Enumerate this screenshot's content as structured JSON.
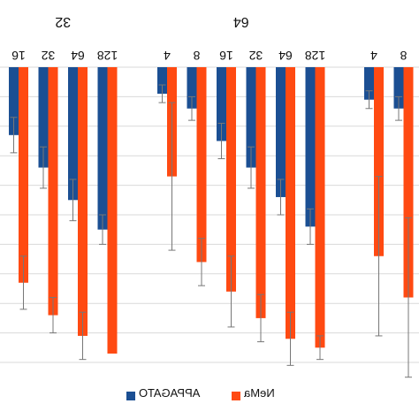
{
  "chart_data": {
    "type": "bar",
    "orientation": "mirrored",
    "title": "",
    "xlabel": "",
    "ylabel": "",
    "ylim": [
      0,
      100
    ],
    "grid": true,
    "legend_position": "bottom",
    "groups": [
      {
        "label": "32",
        "categories": [
          "16",
          "32",
          "64",
          "128"
        ]
      },
      {
        "label": "64",
        "categories": [
          "4",
          "8",
          "16",
          "32",
          "64",
          "128"
        ]
      },
      {
        "label": "",
        "categories": [
          "4",
          "8"
        ]
      }
    ],
    "series": [
      {
        "name": "APPAGATO",
        "color": "#1b4f93",
        "values": [
          23,
          34,
          45,
          55,
          9,
          14,
          25,
          34,
          44,
          54,
          11,
          14
        ],
        "errors": [
          6,
          7,
          7,
          5,
          3,
          4,
          6,
          7,
          6,
          6,
          3,
          4
        ]
      },
      {
        "name": "NeMa",
        "color": "#ff4a12",
        "values": [
          73,
          84,
          91,
          97,
          37,
          66,
          76,
          85,
          92,
          95,
          64,
          78
        ],
        "errors": [
          9,
          6,
          8,
          0,
          25,
          8,
          12,
          8,
          9,
          4,
          27,
          27
        ]
      }
    ]
  }
}
